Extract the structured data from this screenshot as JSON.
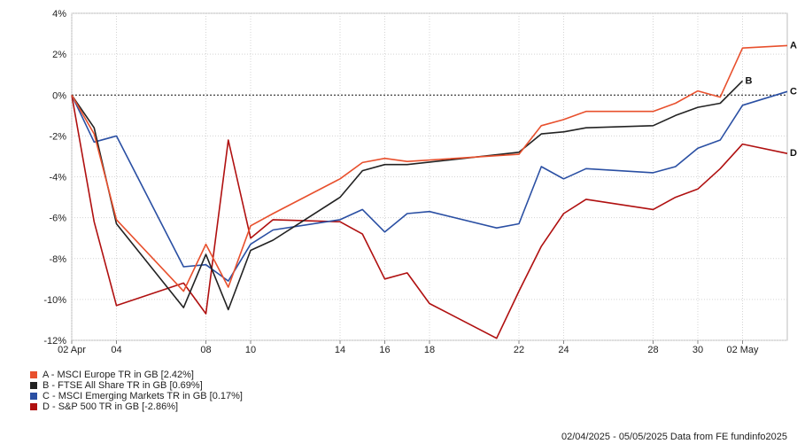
{
  "chart_data": {
    "type": "line",
    "title": "",
    "xlabel": "",
    "ylabel": "",
    "ylim": [
      -12,
      4
    ],
    "yticks": [
      4,
      2,
      0,
      -2,
      -4,
      -6,
      -8,
      -10,
      -12
    ],
    "ytick_labels": [
      "4%",
      "2%",
      "0%",
      "-2%",
      "-4%",
      "-6%",
      "-8%",
      "-10%",
      "-12%"
    ],
    "xlim": [
      "2025-04-02",
      "2025-05-04"
    ],
    "xticks": [
      {
        "date": "2025-04-02",
        "label": "02 Apr"
      },
      {
        "date": "2025-04-04",
        "label": "04"
      },
      {
        "date": "2025-04-08",
        "label": "08"
      },
      {
        "date": "2025-04-10",
        "label": "10"
      },
      {
        "date": "2025-04-14",
        "label": "14"
      },
      {
        "date": "2025-04-16",
        "label": "16"
      },
      {
        "date": "2025-04-18",
        "label": "18"
      },
      {
        "date": "2025-04-22",
        "label": "22"
      },
      {
        "date": "2025-04-24",
        "label": "24"
      },
      {
        "date": "2025-04-28",
        "label": "28"
      },
      {
        "date": "2025-04-30",
        "label": "30"
      },
      {
        "date": "2025-05-02",
        "label": "02 May"
      }
    ],
    "grid": true,
    "zero_line": "dotted",
    "legend_position": "bottom-left",
    "series": [
      {
        "name": "A - MSCI Europe TR in GB [2.42%]",
        "end_label": "A",
        "color": "#e8502d",
        "points": [
          [
            "2025-04-02",
            0.0
          ],
          [
            "2025-04-03",
            -1.9
          ],
          [
            "2025-04-04",
            -6.1
          ],
          [
            "2025-04-07",
            -9.6
          ],
          [
            "2025-04-08",
            -7.3
          ],
          [
            "2025-04-09",
            -9.4
          ],
          [
            "2025-04-10",
            -6.4
          ],
          [
            "2025-04-11",
            -5.8
          ],
          [
            "2025-04-14",
            -4.1
          ],
          [
            "2025-04-15",
            -3.3
          ],
          [
            "2025-04-16",
            -3.1
          ],
          [
            "2025-04-17",
            -3.25
          ],
          [
            "2025-04-22",
            -2.9
          ],
          [
            "2025-04-23",
            -1.5
          ],
          [
            "2025-04-24",
            -1.2
          ],
          [
            "2025-04-25",
            -0.8
          ],
          [
            "2025-04-28",
            -0.8
          ],
          [
            "2025-04-29",
            -0.4
          ],
          [
            "2025-04-30",
            0.2
          ],
          [
            "2025-05-01",
            -0.1
          ],
          [
            "2025-05-02",
            2.3
          ],
          [
            "2025-05-04",
            2.42
          ]
        ]
      },
      {
        "name": "B - FTSE All Share TR in GB [0.69%]",
        "end_label": "B",
        "color": "#222222",
        "points": [
          [
            "2025-04-02",
            0.0
          ],
          [
            "2025-04-03",
            -1.6
          ],
          [
            "2025-04-04",
            -6.3
          ],
          [
            "2025-04-07",
            -10.4
          ],
          [
            "2025-04-08",
            -7.8
          ],
          [
            "2025-04-09",
            -10.5
          ],
          [
            "2025-04-10",
            -7.6
          ],
          [
            "2025-04-11",
            -7.1
          ],
          [
            "2025-04-14",
            -5.0
          ],
          [
            "2025-04-15",
            -3.7
          ],
          [
            "2025-04-16",
            -3.4
          ],
          [
            "2025-04-17",
            -3.4
          ],
          [
            "2025-04-22",
            -2.8
          ],
          [
            "2025-04-23",
            -1.9
          ],
          [
            "2025-04-24",
            -1.8
          ],
          [
            "2025-04-25",
            -1.6
          ],
          [
            "2025-04-28",
            -1.5
          ],
          [
            "2025-04-29",
            -1.0
          ],
          [
            "2025-04-30",
            -0.6
          ],
          [
            "2025-05-01",
            -0.4
          ],
          [
            "2025-05-02",
            0.69
          ]
        ]
      },
      {
        "name": "C - MSCI Emerging Markets TR in GB [0.17%]",
        "end_label": "C",
        "color": "#2a4fa3",
        "points": [
          [
            "2025-04-02",
            0.0
          ],
          [
            "2025-04-03",
            -2.3
          ],
          [
            "2025-04-04",
            -2.0
          ],
          [
            "2025-04-07",
            -8.4
          ],
          [
            "2025-04-08",
            -8.3
          ],
          [
            "2025-04-09",
            -9.1
          ],
          [
            "2025-04-10",
            -7.3
          ],
          [
            "2025-04-11",
            -6.6
          ],
          [
            "2025-04-14",
            -6.1
          ],
          [
            "2025-04-15",
            -5.6
          ],
          [
            "2025-04-16",
            -6.7
          ],
          [
            "2025-04-17",
            -5.8
          ],
          [
            "2025-04-18",
            -5.7
          ],
          [
            "2025-04-21",
            -6.5
          ],
          [
            "2025-04-22",
            -6.3
          ],
          [
            "2025-04-23",
            -3.5
          ],
          [
            "2025-04-24",
            -4.1
          ],
          [
            "2025-04-25",
            -3.6
          ],
          [
            "2025-04-28",
            -3.8
          ],
          [
            "2025-04-29",
            -3.5
          ],
          [
            "2025-04-30",
            -2.6
          ],
          [
            "2025-05-01",
            -2.2
          ],
          [
            "2025-05-02",
            -0.5
          ],
          [
            "2025-05-04",
            0.17
          ]
        ]
      },
      {
        "name": "D - S&P 500 TR in GB [-2.86%]",
        "end_label": "D",
        "color": "#b01010",
        "points": [
          [
            "2025-04-02",
            0.0
          ],
          [
            "2025-04-03",
            -6.2
          ],
          [
            "2025-04-04",
            -10.3
          ],
          [
            "2025-04-07",
            -9.2
          ],
          [
            "2025-04-08",
            -10.7
          ],
          [
            "2025-04-09",
            -2.2
          ],
          [
            "2025-04-10",
            -7.0
          ],
          [
            "2025-04-11",
            -6.1
          ],
          [
            "2025-04-14",
            -6.2
          ],
          [
            "2025-04-15",
            -6.8
          ],
          [
            "2025-04-16",
            -9.0
          ],
          [
            "2025-04-17",
            -8.7
          ],
          [
            "2025-04-18",
            -10.2
          ],
          [
            "2025-04-21",
            -11.9
          ],
          [
            "2025-04-22",
            -9.6
          ],
          [
            "2025-04-23",
            -7.4
          ],
          [
            "2025-04-24",
            -5.8
          ],
          [
            "2025-04-25",
            -5.1
          ],
          [
            "2025-04-28",
            -5.6
          ],
          [
            "2025-04-29",
            -5.0
          ],
          [
            "2025-04-30",
            -4.6
          ],
          [
            "2025-05-01",
            -3.6
          ],
          [
            "2025-05-02",
            -2.4
          ],
          [
            "2025-05-04",
            -2.86
          ]
        ]
      }
    ]
  },
  "footer": "02/04/2025 - 05/05/2025 Data from FE fundinfo2025"
}
